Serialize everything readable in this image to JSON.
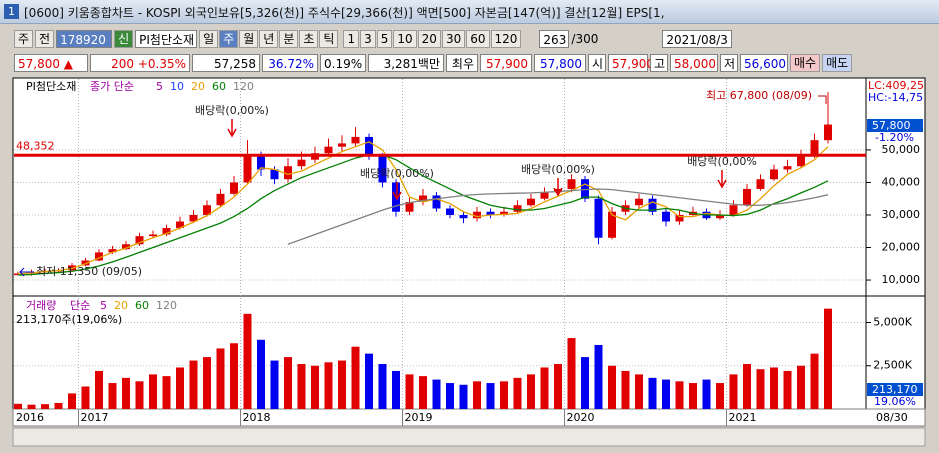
{
  "window": {
    "badge": "1",
    "title": "[0600] 키움종합차트 - KOSPI 외국인보유[5,326(천)] 주식수[29,366(천)] 액면[500] 자본금[147(억)] 결산[12월] EPS[1,"
  },
  "toolbar": {
    "market": "주",
    "scope": "전",
    "code": "178920",
    "new": "신",
    "name": "PI첨단소재",
    "periods": [
      "일",
      "주",
      "월",
      "년",
      "분",
      "초",
      "틱"
    ],
    "intervals": [
      "1",
      "3",
      "5",
      "10",
      "20",
      "30",
      "60",
      "120"
    ],
    "count": "263",
    "max": "/300",
    "date": "2021/08/3"
  },
  "quote": {
    "price": "57,800 ▲",
    "change": "200 +0.35%",
    "items": [
      "57,258",
      "36.72%",
      "0.19%",
      "3,281백만",
      "최우",
      "57,900",
      "57,800",
      "시",
      "57,900",
      "고",
      "58,000",
      "저",
      "56,600"
    ],
    "buy": "매수",
    "sell": "매도"
  },
  "chart_data": [
    {
      "type": "candlestick",
      "title": "PI첨단소재",
      "ma_label": "종가 단순",
      "categories": [
        "2016",
        null,
        null,
        null,
        null,
        "2017",
        null,
        null,
        null,
        null,
        null,
        null,
        null,
        null,
        null,
        null,
        null,
        "2018",
        null,
        null,
        null,
        null,
        null,
        null,
        null,
        null,
        null,
        null,
        null,
        "2019",
        null,
        null,
        null,
        null,
        null,
        null,
        null,
        null,
        null,
        null,
        null,
        "2020",
        null,
        null,
        null,
        null,
        null,
        null,
        null,
        null,
        null,
        null,
        null,
        "2021",
        null,
        null,
        null,
        null,
        null,
        null,
        null
      ],
      "x_end_label": "08/30",
      "open": [
        11500,
        12000,
        12500,
        12800,
        13000,
        14500,
        16000,
        18500,
        19500,
        21000,
        23500,
        24000,
        26000,
        28000,
        30000,
        33000,
        36500,
        40000,
        48000,
        44000,
        41000,
        45000,
        47000,
        49000,
        51000,
        52000,
        54000,
        48000,
        40000,
        31000,
        34000,
        36000,
        32000,
        30000,
        29000,
        31000,
        30000,
        31000,
        33000,
        35000,
        37000,
        38000,
        41000,
        35000,
        23000,
        31000,
        33000,
        35000,
        31000,
        28000,
        30000,
        31000,
        29000,
        30000,
        33000,
        38000,
        41000,
        44000,
        45000,
        48000,
        53000
      ],
      "high": [
        12600,
        13200,
        13500,
        13600,
        15200,
        16800,
        19500,
        20500,
        22000,
        24500,
        25200,
        27000,
        29500,
        31500,
        34500,
        38000,
        42000,
        53000,
        49500,
        45000,
        47500,
        49500,
        51000,
        53500,
        54500,
        57000,
        55000,
        49000,
        41000,
        35500,
        38000,
        37000,
        33000,
        31000,
        32500,
        32000,
        32500,
        34500,
        36500,
        38500,
        40000,
        42500,
        42000,
        36000,
        32500,
        34500,
        36500,
        36000,
        32000,
        31500,
        32500,
        32000,
        31500,
        34500,
        39500,
        42500,
        45500,
        47000,
        50000,
        55000,
        67800
      ],
      "low": [
        11500,
        11350,
        12200,
        12400,
        12800,
        14200,
        15800,
        18000,
        19200,
        20500,
        22800,
        23500,
        25500,
        27500,
        29500,
        32500,
        36000,
        39500,
        42000,
        39500,
        40000,
        44000,
        46000,
        48000,
        49500,
        51000,
        47000,
        38500,
        29500,
        30000,
        33000,
        31000,
        29000,
        27500,
        28000,
        29000,
        29500,
        30500,
        32500,
        34500,
        36000,
        37000,
        34000,
        21000,
        22500,
        30000,
        32000,
        30000,
        26500,
        27000,
        29500,
        28500,
        28500,
        29500,
        32500,
        37500,
        40500,
        43000,
        44500,
        47500,
        52000
      ],
      "close": [
        12000,
        12500,
        12800,
        13000,
        14500,
        16000,
        18500,
        19500,
        21000,
        23500,
        24000,
        26000,
        28000,
        30000,
        33000,
        36500,
        40000,
        48000,
        44000,
        41000,
        45000,
        47000,
        49000,
        51000,
        52000,
        54000,
        48000,
        40000,
        31000,
        34000,
        36000,
        32000,
        30000,
        29000,
        31000,
        30000,
        31000,
        33000,
        35000,
        37000,
        38000,
        41000,
        35000,
        23000,
        31000,
        33000,
        35000,
        31000,
        28000,
        30000,
        31000,
        29000,
        30000,
        33000,
        38000,
        41000,
        44000,
        45000,
        48000,
        53000,
        57800
      ],
      "up_color": "#e00000",
      "down_color": "#0000f0",
      "series": [
        {
          "name": "20",
          "color": "#e8a000",
          "values": [
            11800,
            12200,
            12600,
            12900,
            13600,
            15000,
            16800,
            18500,
            19800,
            21500,
            23000,
            24300,
            26000,
            27800,
            29800,
            32500,
            35500,
            39500,
            44500,
            44000,
            42500,
            43500,
            45500,
            47500,
            49500,
            51000,
            52500,
            50000,
            44000,
            35500,
            34000,
            35000,
            33500,
            31000,
            29500,
            30000,
            30200,
            30500,
            32000,
            34000,
            35800,
            37500,
            39500,
            37500,
            30000,
            28500,
            32000,
            34000,
            32500,
            29500,
            29500,
            30500,
            30000,
            29800,
            31500,
            35000,
            39000,
            42500,
            44500,
            47000,
            51000
          ]
        },
        {
          "name": "60",
          "color": "#008000",
          "values": [
            11500,
            11700,
            12000,
            12300,
            12700,
            13400,
            14300,
            15600,
            17000,
            18500,
            20000,
            21500,
            23000,
            24500,
            26000,
            27500,
            29500,
            32000,
            35000,
            37500,
            39500,
            41500,
            43000,
            44500,
            46000,
            47500,
            48500,
            48500,
            47000,
            44500,
            42000,
            40000,
            38000,
            36000,
            34500,
            33000,
            32200,
            31600,
            31500,
            32000,
            33000,
            34000,
            35500,
            35500,
            33500,
            32000,
            31500,
            31500,
            32000,
            31500,
            30500,
            30000,
            30000,
            29800,
            30200,
            31500,
            33500,
            35000,
            36800,
            38500,
            40500
          ]
        },
        {
          "name": "120",
          "color": "#808080",
          "values": [
            null,
            null,
            null,
            null,
            null,
            null,
            null,
            null,
            null,
            null,
            null,
            null,
            null,
            null,
            null,
            null,
            null,
            null,
            null,
            null,
            21000,
            22500,
            24000,
            25500,
            27000,
            28500,
            30000,
            31500,
            32800,
            33800,
            34500,
            35000,
            35500,
            36000,
            36300,
            36500,
            36600,
            36700,
            36800,
            37000,
            37200,
            37500,
            37800,
            38000,
            37800,
            37300,
            36800,
            36300,
            35800,
            35300,
            34800,
            34300,
            33800,
            33300,
            33000,
            33000,
            33300,
            33800,
            34500,
            35300,
            36200
          ]
        }
      ],
      "legend_extra": [
        {
          "name": "5",
          "color": "#a000a0"
        },
        {
          "name": "10",
          "color": "#2040ff"
        }
      ],
      "ylim": [
        5400,
        71500
      ],
      "yticks": [
        {
          "value": 10000,
          "label": "10,000"
        },
        {
          "value": 20000,
          "label": "20,000"
        },
        {
          "value": 30000,
          "label": "30,000"
        },
        {
          "value": 40000,
          "label": "40,000"
        },
        {
          "value": 50000,
          "label": "50,000"
        }
      ],
      "grid": true,
      "reference_line": {
        "value": 48352,
        "label": "48,352",
        "color": "#e00000"
      },
      "annotations": {
        "dividends": [
          "배당락(0,00%)",
          "배당락(0,00%)",
          "배당락(0,00%)",
          "배당락(0,00%"
        ],
        "high": "최고 67,800 (08/09)",
        "low": "최저 11,350 (09/05)"
      },
      "side_labels": {
        "lc": "LC:409,25",
        "hc": "HC:-14,75",
        "current": "57,800",
        "change": "-1.20%"
      }
    },
    {
      "type": "bar",
      "title": "거래량",
      "ma_label": "단순",
      "legend_extra": [
        {
          "name": "5",
          "color": "#a000a0"
        },
        {
          "name": "20",
          "color": "#e8a000"
        },
        {
          "name": "60",
          "color": "#008000"
        },
        {
          "name": "120",
          "color": "#808080"
        }
      ],
      "info": "213,170주(19,06%)",
      "values": [
        300000,
        250000,
        280000,
        350000,
        900000,
        1300000,
        2200000,
        1500000,
        1800000,
        1600000,
        2000000,
        1900000,
        2400000,
        2800000,
        3000000,
        3500000,
        3800000,
        5500000,
        4000000,
        2800000,
        3000000,
        2600000,
        2500000,
        2700000,
        2800000,
        3600000,
        3200000,
        2600000,
        2200000,
        2000000,
        1900000,
        1700000,
        1500000,
        1400000,
        1600000,
        1500000,
        1600000,
        1800000,
        2000000,
        2400000,
        2600000,
        4100000,
        3000000,
        3700000,
        2500000,
        2200000,
        2000000,
        1800000,
        1700000,
        1600000,
        1500000,
        1700000,
        1500000,
        2000000,
        2600000,
        2300000,
        2400000,
        2200000,
        2500000,
        3200000,
        5800000
      ],
      "ylim": [
        0,
        6300000
      ],
      "yticks": [
        {
          "value": 2500000,
          "label": "2,500K"
        },
        {
          "value": 5000000,
          "label": "5,000K"
        }
      ],
      "grid": true,
      "side_labels": {
        "current": "213,170",
        "ratio": "19.06%"
      }
    }
  ]
}
